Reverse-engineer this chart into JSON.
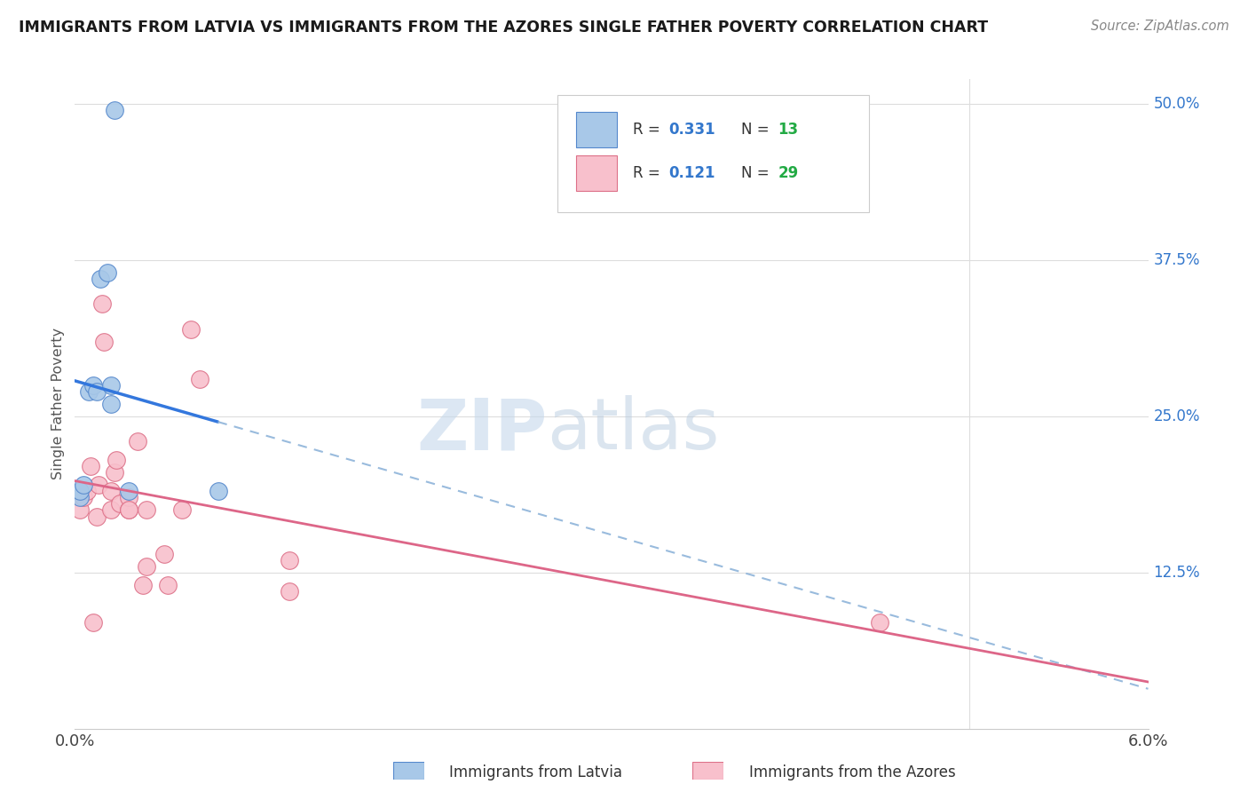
{
  "title": "IMMIGRANTS FROM LATVIA VS IMMIGRANTS FROM THE AZORES SINGLE FATHER POVERTY CORRELATION CHART",
  "source": "Source: ZipAtlas.com",
  "ylabel": "Single Father Poverty",
  "xmin": 0.0,
  "xmax": 0.06,
  "ymin": 0.0,
  "ymax": 0.52,
  "watermark_zip": "ZIP",
  "watermark_atlas": "atlas",
  "latvia_color": "#a8c8e8",
  "latvia_edge": "#5588cc",
  "azores_color": "#f8c0cc",
  "azores_edge": "#dd7088",
  "R_latvia": 0.331,
  "N_latvia": 13,
  "R_azores": 0.121,
  "N_azores": 29,
  "legend_R_color": "#3377cc",
  "legend_N_color": "#22aa44",
  "latvia_x": [
    0.0003,
    0.0003,
    0.0005,
    0.0008,
    0.001,
    0.0012,
    0.0014,
    0.0018,
    0.002,
    0.002,
    0.0022,
    0.003,
    0.008
  ],
  "latvia_y": [
    0.185,
    0.19,
    0.195,
    0.27,
    0.275,
    0.27,
    0.36,
    0.365,
    0.26,
    0.275,
    0.495,
    0.19,
    0.19
  ],
  "azores_x": [
    0.0003,
    0.0005,
    0.0007,
    0.0009,
    0.001,
    0.0012,
    0.0013,
    0.0015,
    0.0016,
    0.002,
    0.002,
    0.0022,
    0.0023,
    0.0025,
    0.003,
    0.003,
    0.003,
    0.0035,
    0.0038,
    0.004,
    0.004,
    0.005,
    0.0052,
    0.006,
    0.0065,
    0.007,
    0.012,
    0.012,
    0.045
  ],
  "azores_y": [
    0.175,
    0.185,
    0.19,
    0.21,
    0.085,
    0.17,
    0.195,
    0.34,
    0.31,
    0.175,
    0.19,
    0.205,
    0.215,
    0.18,
    0.175,
    0.185,
    0.175,
    0.23,
    0.115,
    0.13,
    0.175,
    0.14,
    0.115,
    0.175,
    0.32,
    0.28,
    0.11,
    0.135,
    0.085
  ],
  "blue_line_color": "#3377dd",
  "blue_dash_color": "#99bbdd",
  "pink_line_color": "#dd6688",
  "grid_color": "#dddddd",
  "tick_color": "#cccccc",
  "background": "#ffffff",
  "legend_latvia": "Immigrants from Latvia",
  "legend_azores": "Immigrants from the Azores"
}
